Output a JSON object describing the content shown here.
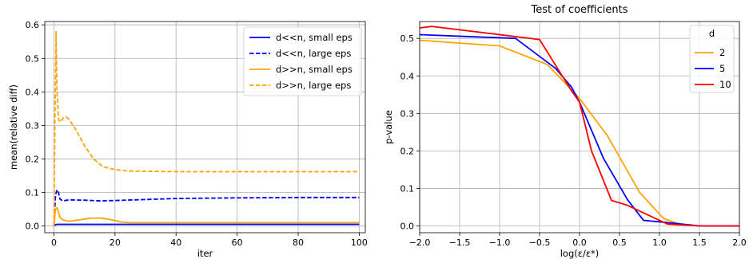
{
  "chart_data": [
    {
      "type": "line",
      "title": "",
      "xlabel": "iter",
      "ylabel": "mean(relative diff)",
      "xlim": [
        -3,
        102
      ],
      "ylim": [
        -0.02,
        0.61
      ],
      "xticks": [
        0,
        20,
        40,
        60,
        80,
        100
      ],
      "xtick_labels": [
        "0",
        "20",
        "40",
        "60",
        "80",
        "100"
      ],
      "yticks": [
        0.0,
        0.1,
        0.2,
        0.3,
        0.4,
        0.5,
        0.6
      ],
      "ytick_labels": [
        "0.0",
        "0.1",
        "0.2",
        "0.3",
        "0.4",
        "0.5",
        "0.6"
      ],
      "grid": true,
      "legend_position": "top-right",
      "series": [
        {
          "name": "d<<n, small eps",
          "color": "#0000ff",
          "dash": "solid",
          "x": [
            0,
            0.5,
            1,
            1.5,
            2,
            3,
            5,
            10,
            20,
            40,
            60,
            80,
            100
          ],
          "y": [
            0.0,
            0.004,
            0.005,
            0.005,
            0.005,
            0.005,
            0.005,
            0.005,
            0.005,
            0.005,
            0.005,
            0.005,
            0.005
          ]
        },
        {
          "name": "d<<n, large eps",
          "color": "#0000ff",
          "dash": "dashed",
          "x": [
            0,
            0.5,
            1,
            1.5,
            2,
            3,
            5,
            10,
            15,
            20,
            30,
            40,
            60,
            80,
            100
          ],
          "y": [
            0.0,
            0.09,
            0.108,
            0.1,
            0.08,
            0.075,
            0.078,
            0.077,
            0.075,
            0.076,
            0.079,
            0.082,
            0.084,
            0.085,
            0.085
          ]
        },
        {
          "name": "d>>n, small eps",
          "color": "#ffa500",
          "dash": "solid",
          "x": [
            0,
            0.5,
            1,
            1.5,
            2,
            3,
            5,
            8,
            12,
            15,
            18,
            22,
            25,
            30,
            40,
            60,
            80,
            100
          ],
          "y": [
            0.0,
            0.05,
            0.055,
            0.04,
            0.025,
            0.018,
            0.014,
            0.018,
            0.023,
            0.024,
            0.02,
            0.012,
            0.01,
            0.01,
            0.01,
            0.01,
            0.01,
            0.01
          ]
        },
        {
          "name": "d>>n, large eps",
          "color": "#ffa500",
          "dash": "dashed",
          "x": [
            0,
            0.3,
            0.7,
            1,
            1.5,
            2,
            3,
            4,
            5,
            7,
            10,
            13,
            16,
            20,
            25,
            30,
            40,
            50,
            60,
            70,
            80,
            90,
            100
          ],
          "y": [
            0.0,
            0.3,
            0.58,
            0.4,
            0.32,
            0.31,
            0.322,
            0.325,
            0.318,
            0.29,
            0.24,
            0.2,
            0.177,
            0.168,
            0.164,
            0.163,
            0.162,
            0.162,
            0.162,
            0.162,
            0.162,
            0.162,
            0.162
          ]
        }
      ]
    },
    {
      "type": "line",
      "title": "Test of coefficients",
      "xlabel": "log(ε/ε*)",
      "ylabel": "p-value",
      "xlim": [
        -2.0,
        2.0
      ],
      "ylim": [
        -0.018,
        0.545
      ],
      "xticks": [
        -2.0,
        -1.5,
        -1.0,
        -0.5,
        0.0,
        0.5,
        1.0,
        1.5,
        2.0
      ],
      "xtick_labels": [
        "−2.0",
        "−1.5",
        "−1.0",
        "−0.5",
        "0.0",
        "0.5",
        "1.0",
        "1.5",
        "2.0"
      ],
      "yticks": [
        0.0,
        0.1,
        0.2,
        0.3,
        0.4,
        0.5
      ],
      "ytick_labels": [
        "0.0",
        "0.1",
        "0.2",
        "0.3",
        "0.4",
        "0.5"
      ],
      "grid": true,
      "legend_title": "d",
      "legend_position": "top-right",
      "series": [
        {
          "name": "2",
          "color": "#ffa500",
          "x": [
            -2.0,
            -1.0,
            -0.4,
            0.0,
            0.35,
            0.75,
            1.05,
            1.25,
            1.5,
            2.0
          ],
          "y": [
            0.495,
            0.48,
            0.43,
            0.34,
            0.24,
            0.09,
            0.02,
            0.005,
            0.0,
            0.0
          ]
        },
        {
          "name": "5",
          "color": "#0000ff",
          "x": [
            -2.0,
            -0.8,
            -0.3,
            -0.1,
            0.0,
            0.3,
            0.6,
            0.8,
            1.05,
            1.5,
            2.0
          ],
          "y": [
            0.51,
            0.5,
            0.42,
            0.37,
            0.33,
            0.18,
            0.07,
            0.015,
            0.01,
            0.0,
            0.0
          ]
        },
        {
          "name": "10",
          "color": "#ff0000",
          "x": [
            -2.0,
            -1.85,
            -0.5,
            -0.1,
            0.0,
            0.15,
            0.4,
            0.6,
            0.8,
            1.1,
            1.5,
            2.0
          ],
          "y": [
            0.528,
            0.532,
            0.497,
            0.36,
            0.33,
            0.2,
            0.068,
            0.055,
            0.035,
            0.005,
            0.0,
            0.0
          ]
        }
      ]
    }
  ]
}
